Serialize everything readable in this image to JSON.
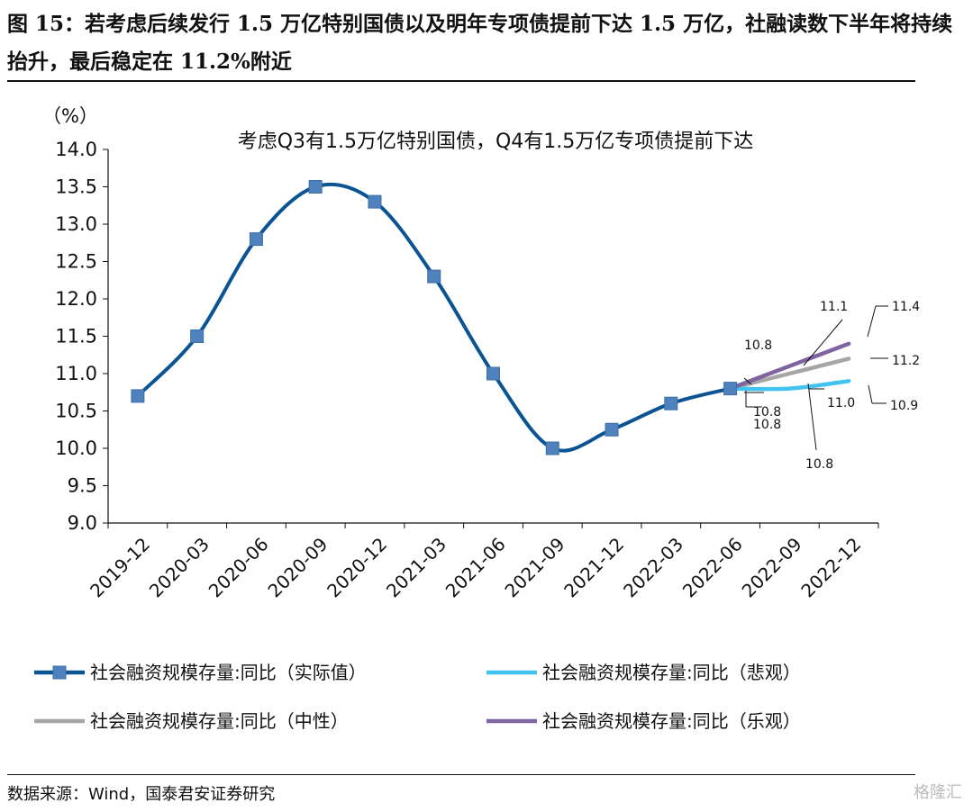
{
  "figure": {
    "title": "图 15：若考虑后续发行 1.5 万亿特别国债以及明年专项债提前下达 1.5 万亿，社融读数下半年将持续抬升，最后稳定在 11.2%附近",
    "source": "数据来源：Wind，国泰君安证券研究",
    "watermark": "格隆汇"
  },
  "chart_data": {
    "type": "line",
    "title": "考虑Q3有1.5万亿特别国债，Q4有1.5万亿专项债提前下达",
    "ylabel": "（%）",
    "ylim": [
      9.0,
      14.0
    ],
    "yticks": [
      "14.0",
      "13.5",
      "13.0",
      "12.5",
      "12.0",
      "11.5",
      "11.0",
      "10.5",
      "10.0",
      "9.5",
      "9.0"
    ],
    "categories": [
      "2019-12",
      "2020-03",
      "2020-06",
      "2020-09",
      "2020-12",
      "2021-03",
      "2021-06",
      "2021-09",
      "2021-12",
      "2022-03",
      "2022-06",
      "2022-09",
      "2022-12"
    ],
    "legend_position": "bottom",
    "series": [
      {
        "name": "社会融资规模存量:同比（实际值）",
        "color": "#0b5494",
        "marker": "square",
        "values": [
          10.7,
          11.5,
          12.8,
          13.5,
          13.3,
          12.3,
          11.0,
          10.0,
          10.25,
          10.6,
          10.8,
          null,
          null
        ]
      },
      {
        "name": "社会融资规模存量:同比（悲观）",
        "color": "#42c2ee",
        "marker": "none",
        "values": [
          null,
          null,
          null,
          null,
          null,
          null,
          null,
          null,
          null,
          null,
          10.8,
          10.8,
          10.9
        ]
      },
      {
        "name": "社会融资规模存量:同比（中性）",
        "color": "#a6a6a6",
        "marker": "none",
        "values": [
          null,
          null,
          null,
          null,
          null,
          null,
          null,
          null,
          null,
          null,
          10.8,
          11.0,
          11.2
        ]
      },
      {
        "name": "社会融资规模存量:同比（乐观）",
        "color": "#8064a2",
        "marker": "none",
        "values": [
          null,
          null,
          null,
          null,
          null,
          null,
          null,
          null,
          null,
          null,
          10.8,
          11.1,
          11.4
        ]
      }
    ],
    "annotations": [
      {
        "text": "10.8",
        "x": "2022-06",
        "value": 10.8
      },
      {
        "text": "10.8",
        "x": "2022-06",
        "value": 10.8
      },
      {
        "text": "10.8",
        "x": "2022-06",
        "value": 10.8
      },
      {
        "text": "11.1",
        "x": "2022-09",
        "value": 11.1
      },
      {
        "text": "11.0",
        "x": "2022-09",
        "value": 11.0
      },
      {
        "text": "10.8",
        "x": "2022-09",
        "value": 10.8
      },
      {
        "text": "11.4",
        "x": "2022-12",
        "value": 11.4
      },
      {
        "text": "11.2",
        "x": "2022-12",
        "value": 11.2
      },
      {
        "text": "10.9",
        "x": "2022-12",
        "value": 10.9
      }
    ]
  }
}
